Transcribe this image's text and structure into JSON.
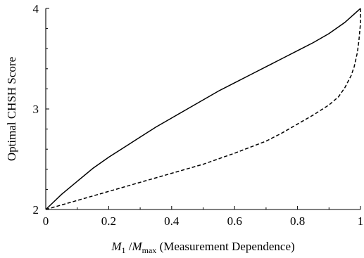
{
  "chart_data": {
    "type": "line",
    "xlabel": {
      "var1": "M",
      "sub1": "1",
      "sep": " /",
      "var2": "M",
      "sub2": "max",
      "rest": " (Measurement Dependence)"
    },
    "ylabel": "Optimal CHSH Score",
    "xlim": [
      0,
      1
    ],
    "ylim": [
      2,
      4
    ],
    "xticks": [
      "0",
      "0.2",
      "0.4",
      "0.6",
      "0.8",
      "1"
    ],
    "xtick_values": [
      0,
      0.2,
      0.4,
      0.6,
      0.8,
      1
    ],
    "yticks": [
      "2",
      "3",
      "4"
    ],
    "ytick_values": [
      2,
      3,
      4
    ],
    "grid": false,
    "series": [
      {
        "style": "solid",
        "color": "#000000",
        "x": [
          0,
          0.05,
          0.1,
          0.15,
          0.2,
          0.25,
          0.3,
          0.35,
          0.4,
          0.45,
          0.5,
          0.55,
          0.6,
          0.65,
          0.7,
          0.75,
          0.8,
          0.85,
          0.9,
          0.95,
          1
        ],
        "y": [
          2.0,
          2.15,
          2.28,
          2.41,
          2.52,
          2.62,
          2.72,
          2.82,
          2.91,
          3.0,
          3.09,
          3.18,
          3.26,
          3.34,
          3.42,
          3.5,
          3.58,
          3.66,
          3.75,
          3.86,
          4.0
        ]
      },
      {
        "style": "dashed",
        "color": "#000000",
        "x": [
          0,
          0.1,
          0.2,
          0.3,
          0.4,
          0.5,
          0.6,
          0.7,
          0.75,
          0.8,
          0.85,
          0.9,
          0.93,
          0.95,
          0.97,
          0.98,
          0.99,
          0.995,
          1,
          1
        ],
        "y": [
          2.0,
          2.09,
          2.18,
          2.27,
          2.36,
          2.45,
          2.56,
          2.68,
          2.76,
          2.85,
          2.94,
          3.04,
          3.12,
          3.21,
          3.33,
          3.42,
          3.56,
          3.68,
          3.85,
          4.0
        ]
      }
    ]
  }
}
